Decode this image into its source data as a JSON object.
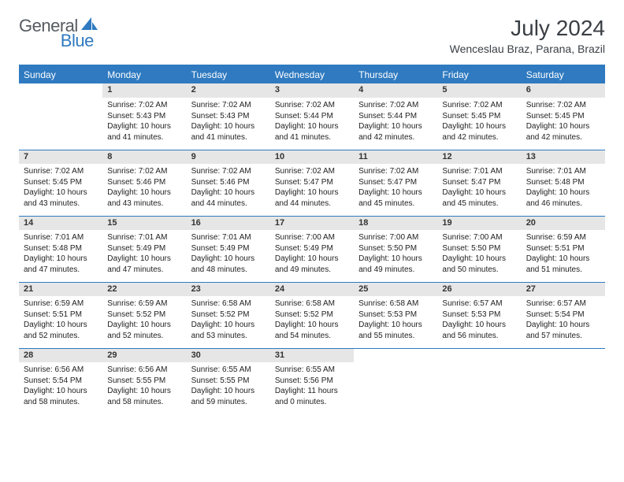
{
  "logo": {
    "text1": "General",
    "text2": "Blue"
  },
  "title": "July 2024",
  "location": "Wenceslau Braz, Parana, Brazil",
  "colors": {
    "header_bg": "#2f7ac0",
    "header_text": "#ffffff",
    "daynum_bg": "#e6e6e6",
    "border": "#2f7ac0",
    "body_text": "#222222",
    "title_text": "#3a3f44",
    "logo_gray": "#555b61",
    "logo_blue": "#2f7ac0",
    "page_bg": "#ffffff"
  },
  "typography": {
    "title_fontsize": 28,
    "location_fontsize": 14,
    "weekday_fontsize": 12,
    "daynum_fontsize": 11,
    "cell_fontsize": 10
  },
  "weekdays": [
    "Sunday",
    "Monday",
    "Tuesday",
    "Wednesday",
    "Thursday",
    "Friday",
    "Saturday"
  ],
  "weeks": [
    [
      {
        "day": "",
        "sunrise": "",
        "sunset": "",
        "daylight": ""
      },
      {
        "day": "1",
        "sunrise": "Sunrise: 7:02 AM",
        "sunset": "Sunset: 5:43 PM",
        "daylight": "Daylight: 10 hours and 41 minutes."
      },
      {
        "day": "2",
        "sunrise": "Sunrise: 7:02 AM",
        "sunset": "Sunset: 5:43 PM",
        "daylight": "Daylight: 10 hours and 41 minutes."
      },
      {
        "day": "3",
        "sunrise": "Sunrise: 7:02 AM",
        "sunset": "Sunset: 5:44 PM",
        "daylight": "Daylight: 10 hours and 41 minutes."
      },
      {
        "day": "4",
        "sunrise": "Sunrise: 7:02 AM",
        "sunset": "Sunset: 5:44 PM",
        "daylight": "Daylight: 10 hours and 42 minutes."
      },
      {
        "day": "5",
        "sunrise": "Sunrise: 7:02 AM",
        "sunset": "Sunset: 5:45 PM",
        "daylight": "Daylight: 10 hours and 42 minutes."
      },
      {
        "day": "6",
        "sunrise": "Sunrise: 7:02 AM",
        "sunset": "Sunset: 5:45 PM",
        "daylight": "Daylight: 10 hours and 42 minutes."
      }
    ],
    [
      {
        "day": "7",
        "sunrise": "Sunrise: 7:02 AM",
        "sunset": "Sunset: 5:45 PM",
        "daylight": "Daylight: 10 hours and 43 minutes."
      },
      {
        "day": "8",
        "sunrise": "Sunrise: 7:02 AM",
        "sunset": "Sunset: 5:46 PM",
        "daylight": "Daylight: 10 hours and 43 minutes."
      },
      {
        "day": "9",
        "sunrise": "Sunrise: 7:02 AM",
        "sunset": "Sunset: 5:46 PM",
        "daylight": "Daylight: 10 hours and 44 minutes."
      },
      {
        "day": "10",
        "sunrise": "Sunrise: 7:02 AM",
        "sunset": "Sunset: 5:47 PM",
        "daylight": "Daylight: 10 hours and 44 minutes."
      },
      {
        "day": "11",
        "sunrise": "Sunrise: 7:02 AM",
        "sunset": "Sunset: 5:47 PM",
        "daylight": "Daylight: 10 hours and 45 minutes."
      },
      {
        "day": "12",
        "sunrise": "Sunrise: 7:01 AM",
        "sunset": "Sunset: 5:47 PM",
        "daylight": "Daylight: 10 hours and 45 minutes."
      },
      {
        "day": "13",
        "sunrise": "Sunrise: 7:01 AM",
        "sunset": "Sunset: 5:48 PM",
        "daylight": "Daylight: 10 hours and 46 minutes."
      }
    ],
    [
      {
        "day": "14",
        "sunrise": "Sunrise: 7:01 AM",
        "sunset": "Sunset: 5:48 PM",
        "daylight": "Daylight: 10 hours and 47 minutes."
      },
      {
        "day": "15",
        "sunrise": "Sunrise: 7:01 AM",
        "sunset": "Sunset: 5:49 PM",
        "daylight": "Daylight: 10 hours and 47 minutes."
      },
      {
        "day": "16",
        "sunrise": "Sunrise: 7:01 AM",
        "sunset": "Sunset: 5:49 PM",
        "daylight": "Daylight: 10 hours and 48 minutes."
      },
      {
        "day": "17",
        "sunrise": "Sunrise: 7:00 AM",
        "sunset": "Sunset: 5:49 PM",
        "daylight": "Daylight: 10 hours and 49 minutes."
      },
      {
        "day": "18",
        "sunrise": "Sunrise: 7:00 AM",
        "sunset": "Sunset: 5:50 PM",
        "daylight": "Daylight: 10 hours and 49 minutes."
      },
      {
        "day": "19",
        "sunrise": "Sunrise: 7:00 AM",
        "sunset": "Sunset: 5:50 PM",
        "daylight": "Daylight: 10 hours and 50 minutes."
      },
      {
        "day": "20",
        "sunrise": "Sunrise: 6:59 AM",
        "sunset": "Sunset: 5:51 PM",
        "daylight": "Daylight: 10 hours and 51 minutes."
      }
    ],
    [
      {
        "day": "21",
        "sunrise": "Sunrise: 6:59 AM",
        "sunset": "Sunset: 5:51 PM",
        "daylight": "Daylight: 10 hours and 52 minutes."
      },
      {
        "day": "22",
        "sunrise": "Sunrise: 6:59 AM",
        "sunset": "Sunset: 5:52 PM",
        "daylight": "Daylight: 10 hours and 52 minutes."
      },
      {
        "day": "23",
        "sunrise": "Sunrise: 6:58 AM",
        "sunset": "Sunset: 5:52 PM",
        "daylight": "Daylight: 10 hours and 53 minutes."
      },
      {
        "day": "24",
        "sunrise": "Sunrise: 6:58 AM",
        "sunset": "Sunset: 5:52 PM",
        "daylight": "Daylight: 10 hours and 54 minutes."
      },
      {
        "day": "25",
        "sunrise": "Sunrise: 6:58 AM",
        "sunset": "Sunset: 5:53 PM",
        "daylight": "Daylight: 10 hours and 55 minutes."
      },
      {
        "day": "26",
        "sunrise": "Sunrise: 6:57 AM",
        "sunset": "Sunset: 5:53 PM",
        "daylight": "Daylight: 10 hours and 56 minutes."
      },
      {
        "day": "27",
        "sunrise": "Sunrise: 6:57 AM",
        "sunset": "Sunset: 5:54 PM",
        "daylight": "Daylight: 10 hours and 57 minutes."
      }
    ],
    [
      {
        "day": "28",
        "sunrise": "Sunrise: 6:56 AM",
        "sunset": "Sunset: 5:54 PM",
        "daylight": "Daylight: 10 hours and 58 minutes."
      },
      {
        "day": "29",
        "sunrise": "Sunrise: 6:56 AM",
        "sunset": "Sunset: 5:55 PM",
        "daylight": "Daylight: 10 hours and 58 minutes."
      },
      {
        "day": "30",
        "sunrise": "Sunrise: 6:55 AM",
        "sunset": "Sunset: 5:55 PM",
        "daylight": "Daylight: 10 hours and 59 minutes."
      },
      {
        "day": "31",
        "sunrise": "Sunrise: 6:55 AM",
        "sunset": "Sunset: 5:56 PM",
        "daylight": "Daylight: 11 hours and 0 minutes."
      },
      {
        "day": "",
        "sunrise": "",
        "sunset": "",
        "daylight": ""
      },
      {
        "day": "",
        "sunrise": "",
        "sunset": "",
        "daylight": ""
      },
      {
        "day": "",
        "sunrise": "",
        "sunset": "",
        "daylight": ""
      }
    ]
  ]
}
